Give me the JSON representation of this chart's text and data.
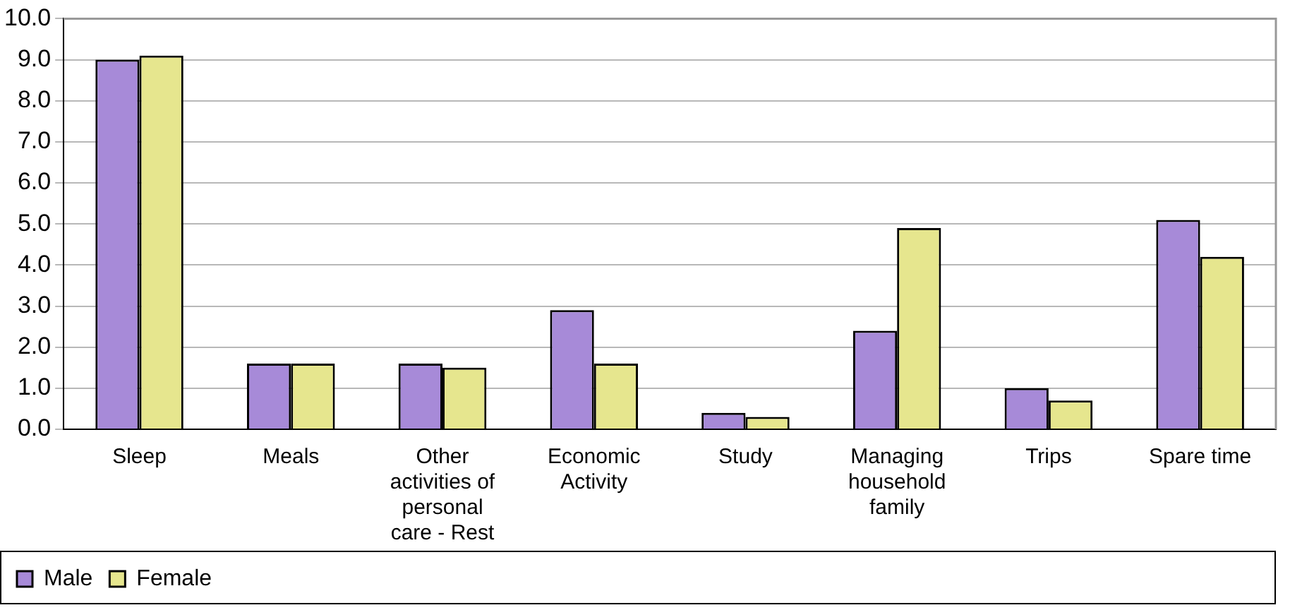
{
  "chart_data": {
    "type": "bar",
    "categories": [
      "Sleep",
      "Meals",
      "Other activities of personal care - Rest",
      "Economic Activity",
      "Study",
      "Managing household family",
      "Trips",
      "Spare time"
    ],
    "series": [
      {
        "name": "Male",
        "color": "#a78ad8",
        "values": [
          9.0,
          1.6,
          1.6,
          2.9,
          0.4,
          2.4,
          1.0,
          5.1
        ]
      },
      {
        "name": "Female",
        "color": "#e6e68e",
        "values": [
          9.1,
          1.6,
          1.5,
          1.6,
          0.3,
          4.9,
          0.7,
          4.2
        ]
      }
    ],
    "ylim": [
      0,
      10
    ],
    "yticks": [
      {
        "value": 0,
        "label": "0.0"
      },
      {
        "value": 1,
        "label": "1.0"
      },
      {
        "value": 2,
        "label": "2.0"
      },
      {
        "value": 3,
        "label": "3.0"
      },
      {
        "value": 4,
        "label": "4.0"
      },
      {
        "value": 5,
        "label": "5.0"
      },
      {
        "value": 6,
        "label": "6.0"
      },
      {
        "value": 7,
        "label": "7.0"
      },
      {
        "value": 8,
        "label": "8.0"
      },
      {
        "value": 9,
        "label": "9.0"
      },
      {
        "value": 10,
        "label": "10.0"
      }
    ],
    "grid": "y",
    "legend": "bottom left"
  }
}
